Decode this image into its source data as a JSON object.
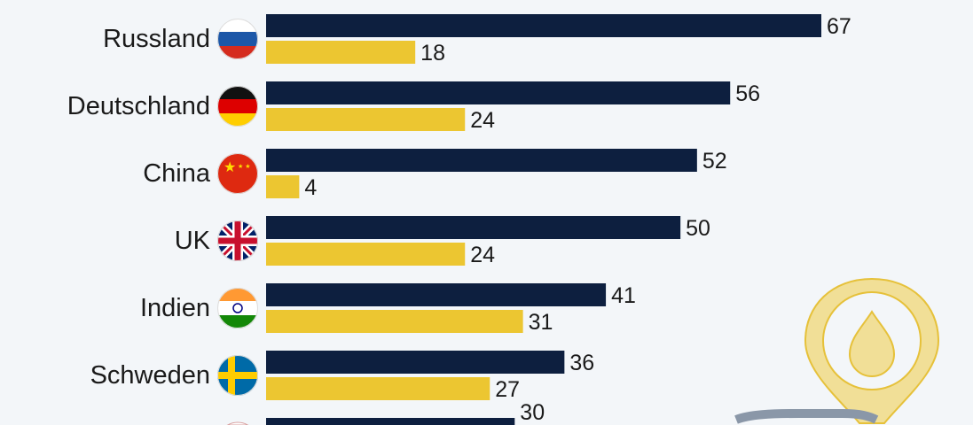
{
  "chart_data": {
    "type": "bar",
    "orientation": "horizontal",
    "categories": [
      "Russland",
      "Deutschland",
      "China",
      "UK",
      "Indien",
      "Schweden",
      ""
    ],
    "series": [
      {
        "name": "series-1",
        "color": "#0d1f3f",
        "values": [
          67,
          56,
          52,
          50,
          41,
          36,
          30
        ]
      },
      {
        "name": "series-2",
        "color": "#ecc631",
        "values": [
          18,
          24,
          4,
          24,
          31,
          27,
          null
        ]
      }
    ],
    "title": "",
    "xlabel": "",
    "ylabel": "",
    "xlim": [
      0,
      67
    ],
    "grid": false,
    "flags": [
      "russia",
      "germany",
      "china",
      "uk",
      "india",
      "sweden",
      "unknown"
    ]
  }
}
